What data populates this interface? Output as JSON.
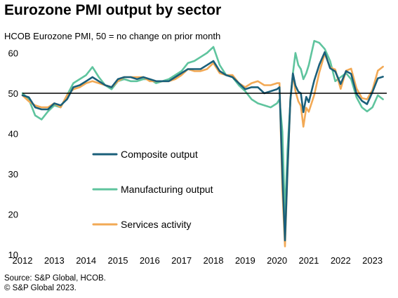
{
  "title": "Eurozone PMI output by sector",
  "subtitle": "HCOB Eurozone PMI, 50 = no change on prior month",
  "footnotes": [
    "Source: S&P Global, HCOB.",
    "© S&P Global 2023."
  ],
  "chart_data": {
    "type": "line",
    "title": "Eurozone PMI output by sector",
    "subtitle": "HCOB Eurozone PMI, 50 = no change on prior month",
    "xlim": [
      2012.0,
      2023.45
    ],
    "ylim": [
      10,
      62
    ],
    "x_ticks": [
      "2012",
      "2013",
      "2014",
      "2015",
      "2016",
      "2017",
      "2018",
      "2019",
      "2020",
      "2021",
      "2022",
      "2023"
    ],
    "y_ticks": [
      10,
      20,
      30,
      40,
      50,
      60
    ],
    "reference_line": 50,
    "grid": false,
    "legend_position": "center-left",
    "series": [
      {
        "name": "Composite output",
        "color": "#1a5f7a",
        "x": [
          2012.0,
          2012.2,
          2012.4,
          2012.6,
          2012.8,
          2013.0,
          2013.2,
          2013.4,
          2013.6,
          2013.8,
          2014.0,
          2014.2,
          2014.4,
          2014.6,
          2014.8,
          2015.0,
          2015.2,
          2015.4,
          2015.6,
          2015.8,
          2016.0,
          2016.2,
          2016.4,
          2016.6,
          2016.8,
          2017.0,
          2017.2,
          2017.4,
          2017.6,
          2017.8,
          2018.0,
          2018.2,
          2018.4,
          2018.6,
          2018.8,
          2019.0,
          2019.2,
          2019.4,
          2019.6,
          2019.8,
          2020.0,
          2020.08,
          2020.17,
          2020.25,
          2020.33,
          2020.42,
          2020.5,
          2020.58,
          2020.67,
          2020.75,
          2020.83,
          2020.92,
          2021.0,
          2021.17,
          2021.33,
          2021.5,
          2021.67,
          2021.83,
          2022.0,
          2022.17,
          2022.33,
          2022.5,
          2022.67,
          2022.83,
          2023.0,
          2023.17,
          2023.33
        ],
        "values": [
          49.5,
          49.0,
          46.5,
          46.0,
          46.0,
          47.5,
          47.0,
          48.5,
          51.5,
          52.0,
          53.0,
          54.0,
          53.0,
          52.0,
          51.5,
          53.5,
          54.0,
          54.0,
          53.5,
          54.0,
          53.5,
          53.0,
          53.0,
          53.0,
          54.0,
          55.0,
          56.0,
          56.0,
          56.0,
          57.0,
          58.0,
          55.5,
          54.5,
          54.0,
          52.5,
          51.0,
          51.5,
          51.5,
          50.0,
          50.5,
          51.0,
          51.5,
          29.5,
          13.5,
          31.0,
          48.5,
          54.9,
          51.9,
          50.4,
          50.0,
          45.3,
          49.1,
          47.8,
          53.2,
          57.1,
          60.2,
          56.2,
          55.4,
          52.3,
          55.5,
          54.8,
          49.9,
          48.1,
          47.3,
          50.3,
          53.7,
          54.1
        ]
      },
      {
        "name": "Manufacturing output",
        "color": "#5fc49e",
        "x": [
          2012.0,
          2012.2,
          2012.4,
          2012.6,
          2012.8,
          2013.0,
          2013.2,
          2013.4,
          2013.6,
          2013.8,
          2014.0,
          2014.2,
          2014.4,
          2014.6,
          2014.8,
          2015.0,
          2015.2,
          2015.4,
          2015.6,
          2015.8,
          2016.0,
          2016.2,
          2016.4,
          2016.6,
          2016.8,
          2017.0,
          2017.2,
          2017.4,
          2017.6,
          2017.8,
          2018.0,
          2018.2,
          2018.4,
          2018.6,
          2018.8,
          2019.0,
          2019.2,
          2019.4,
          2019.6,
          2019.8,
          2020.0,
          2020.08,
          2020.17,
          2020.25,
          2020.33,
          2020.42,
          2020.5,
          2020.58,
          2020.67,
          2020.75,
          2020.83,
          2020.92,
          2021.0,
          2021.17,
          2021.33,
          2021.5,
          2021.67,
          2021.83,
          2022.0,
          2022.17,
          2022.33,
          2022.5,
          2022.67,
          2022.83,
          2023.0,
          2023.17,
          2023.33
        ],
        "values": [
          50.0,
          48.5,
          44.5,
          43.5,
          45.5,
          47.0,
          46.5,
          49.5,
          52.5,
          53.5,
          54.5,
          56.5,
          54.0,
          52.0,
          51.0,
          53.0,
          53.5,
          53.0,
          53.0,
          53.5,
          53.5,
          52.5,
          53.0,
          53.5,
          54.5,
          55.5,
          57.5,
          58.0,
          59.0,
          60.0,
          61.5,
          57.0,
          54.5,
          54.0,
          52.0,
          50.5,
          48.5,
          47.5,
          47.0,
          46.5,
          47.5,
          48.5,
          40.5,
          19.5,
          36.0,
          48.0,
          55.0,
          60.0,
          57.0,
          56.0,
          53.5,
          55.0,
          57.0,
          63.0,
          62.5,
          61.0,
          58.0,
          53.0,
          54.0,
          55.0,
          53.5,
          49.0,
          46.5,
          45.5,
          46.5,
          49.5,
          48.5
        ]
      },
      {
        "name": "Services activity",
        "color": "#f2a955",
        "x": [
          2012.0,
          2012.2,
          2012.4,
          2012.6,
          2012.8,
          2013.0,
          2013.2,
          2013.4,
          2013.6,
          2013.8,
          2014.0,
          2014.2,
          2014.4,
          2014.6,
          2014.8,
          2015.0,
          2015.2,
          2015.4,
          2015.6,
          2015.8,
          2016.0,
          2016.2,
          2016.4,
          2016.6,
          2016.8,
          2017.0,
          2017.2,
          2017.4,
          2017.6,
          2017.8,
          2018.0,
          2018.2,
          2018.4,
          2018.6,
          2018.8,
          2019.0,
          2019.2,
          2019.4,
          2019.6,
          2019.8,
          2020.0,
          2020.08,
          2020.17,
          2020.25,
          2020.33,
          2020.42,
          2020.5,
          2020.58,
          2020.67,
          2020.75,
          2020.83,
          2020.92,
          2021.0,
          2021.17,
          2021.33,
          2021.5,
          2021.67,
          2021.83,
          2022.0,
          2022.17,
          2022.33,
          2022.5,
          2022.67,
          2022.83,
          2023.0,
          2023.17,
          2023.33
        ],
        "values": [
          49.5,
          48.0,
          47.0,
          46.5,
          46.5,
          47.5,
          46.5,
          49.5,
          51.0,
          51.5,
          52.5,
          53.0,
          52.5,
          52.0,
          51.5,
          53.0,
          54.0,
          54.0,
          54.0,
          54.0,
          53.0,
          53.0,
          53.0,
          53.0,
          53.5,
          54.5,
          56.0,
          55.5,
          55.5,
          56.0,
          57.5,
          55.0,
          54.5,
          54.5,
          52.5,
          51.5,
          52.5,
          53.0,
          52.0,
          52.0,
          52.5,
          52.5,
          26.0,
          12.0,
          30.5,
          48.5,
          54.7,
          50.5,
          48.0,
          46.9,
          41.7,
          46.4,
          45.4,
          49.6,
          55.2,
          59.8,
          56.4,
          55.9,
          51.1,
          55.6,
          56.1,
          51.2,
          48.8,
          48.5,
          50.8,
          55.6,
          56.6
        ]
      }
    ]
  }
}
